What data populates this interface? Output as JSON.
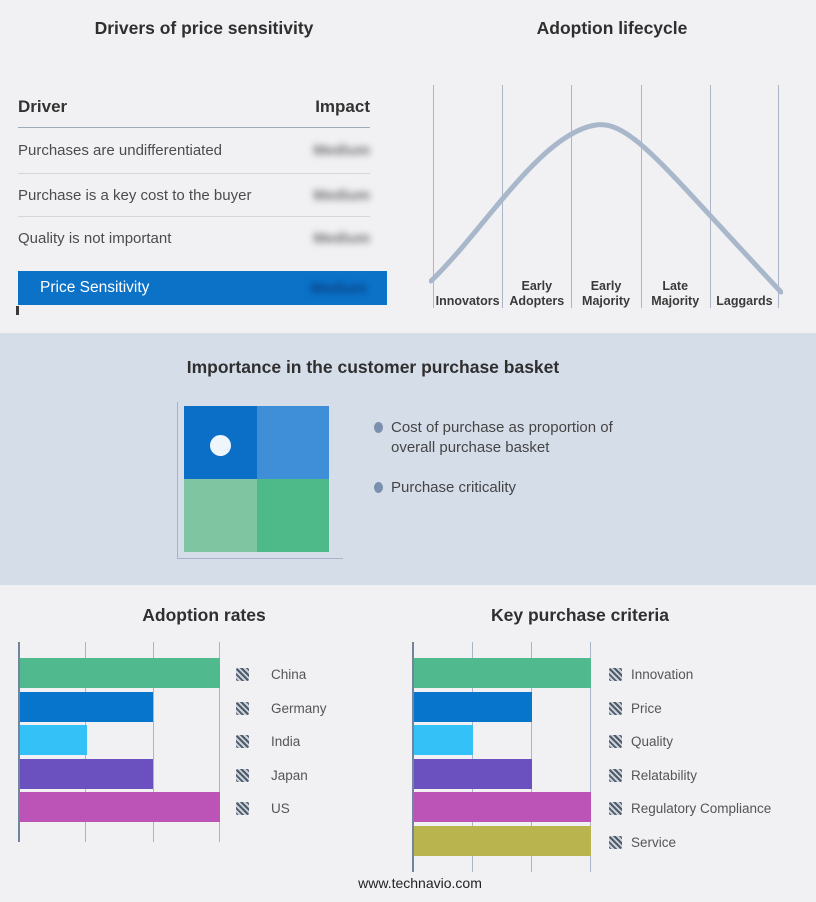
{
  "drivers": {
    "title": "Drivers of price sensitivity",
    "columns": {
      "driver": "Driver",
      "impact": "Impact"
    },
    "rows": [
      {
        "label": "Purchases are undifferentiated",
        "impact": "Medium"
      },
      {
        "label": "Purchase is a key cost to the buyer",
        "impact": "Medium"
      },
      {
        "label": "Quality is not important",
        "impact": "Medium"
      }
    ],
    "highlight_row": {
      "label": "Price Sensitivity",
      "impact": "Medium"
    },
    "highlight_color": "#0b72c8",
    "impact_values_blurred": true
  },
  "lifecycle": {
    "title": "Adoption lifecycle",
    "stages": [
      "Innovators",
      "Early\nAdopters",
      "Early\nMajority",
      "Late\nMajority",
      "Laggards"
    ],
    "curve_color": "#a9b7cb"
  },
  "basket": {
    "title": "Importance in the customer purchase basket",
    "bullets": [
      "Cost of purchase as proportion of overall purchase basket",
      "Purchase criticality"
    ],
    "quadrant_colors": [
      "#0b6fc7",
      "#3e8ed8",
      "#80c5a2",
      "#4fba89"
    ],
    "marker": {
      "quadrant": "top-left",
      "color": "#eef6fc"
    },
    "band_color": "#d5dde9"
  },
  "adoption_rates": {
    "title": "Adoption rates",
    "max_units": 3,
    "bars": [
      {
        "label": "China",
        "value": 3,
        "color": "#50b98e"
      },
      {
        "label": "Germany",
        "value": 2,
        "color": "#0775cb"
      },
      {
        "label": "India",
        "value": 1,
        "color": "#33c1f8"
      },
      {
        "label": "Japan",
        "value": 2,
        "color": "#6b51c0"
      },
      {
        "label": "US",
        "value": 3,
        "color": "#bc53b7"
      }
    ]
  },
  "purchase_criteria": {
    "title": "Key purchase criteria",
    "max_units": 3,
    "bars": [
      {
        "label": "Innovation",
        "value": 3,
        "color": "#50b98e"
      },
      {
        "label": "Price",
        "value": 2,
        "color": "#0775cb"
      },
      {
        "label": "Quality",
        "value": 1,
        "color": "#33c1f8"
      },
      {
        "label": "Relatability",
        "value": 2,
        "color": "#6b51c0"
      },
      {
        "label": "Regulatory Compliance",
        "value": 3,
        "color": "#bc53b7"
      },
      {
        "label": "Service",
        "value": 3,
        "color": "#b9b44e"
      }
    ]
  },
  "footer": {
    "text": "www.technavio.com"
  },
  "chart_data": [
    {
      "type": "table",
      "title": "Drivers of price sensitivity",
      "columns": [
        "Driver",
        "Impact"
      ],
      "rows": [
        [
          "Purchases are undifferentiated",
          "Medium"
        ],
        [
          "Purchase is a key cost to the buyer",
          "Medium"
        ],
        [
          "Quality is not important",
          "Medium"
        ],
        [
          "Price Sensitivity",
          "Medium"
        ]
      ],
      "note": "Impact values are blurred in the source image; last row highlighted blue"
    },
    {
      "type": "line",
      "title": "Adoption lifecycle",
      "categories": [
        "Innovators",
        "Early Adopters",
        "Early Majority",
        "Late Majority",
        "Laggards"
      ],
      "shape": "bell curve rising from Innovators, peaking at Early Majority, falling through Laggards",
      "grid": "5 equal segments separated by vertical gridlines, no y-axis values shown"
    },
    {
      "type": "bar",
      "title": "Adoption rates",
      "orientation": "horizontal",
      "categories": [
        "China",
        "Germany",
        "India",
        "Japan",
        "US"
      ],
      "values": [
        3,
        2,
        1,
        2,
        3
      ],
      "xlim": [
        0,
        3
      ],
      "xlabel": "",
      "ylabel": "",
      "note": "lengths read in gridline units; no numeric axis labels shown",
      "legend_position": "right"
    },
    {
      "type": "bar",
      "title": "Key purchase criteria",
      "orientation": "horizontal",
      "categories": [
        "Innovation",
        "Price",
        "Quality",
        "Relatability",
        "Regulatory Compliance",
        "Service"
      ],
      "values": [
        3,
        2,
        1,
        2,
        3,
        3
      ],
      "xlim": [
        0,
        3
      ],
      "xlabel": "",
      "ylabel": "",
      "note": "lengths read in gridline units; no numeric axis labels shown",
      "legend_position": "right"
    },
    {
      "type": "scatter",
      "title": "Importance in the customer purchase basket",
      "points": [
        {
          "x": 0.25,
          "y": 0.73
        }
      ],
      "note": "single white marker in upper-left quadrant of a 2x2 blue/green matrix"
    }
  ]
}
